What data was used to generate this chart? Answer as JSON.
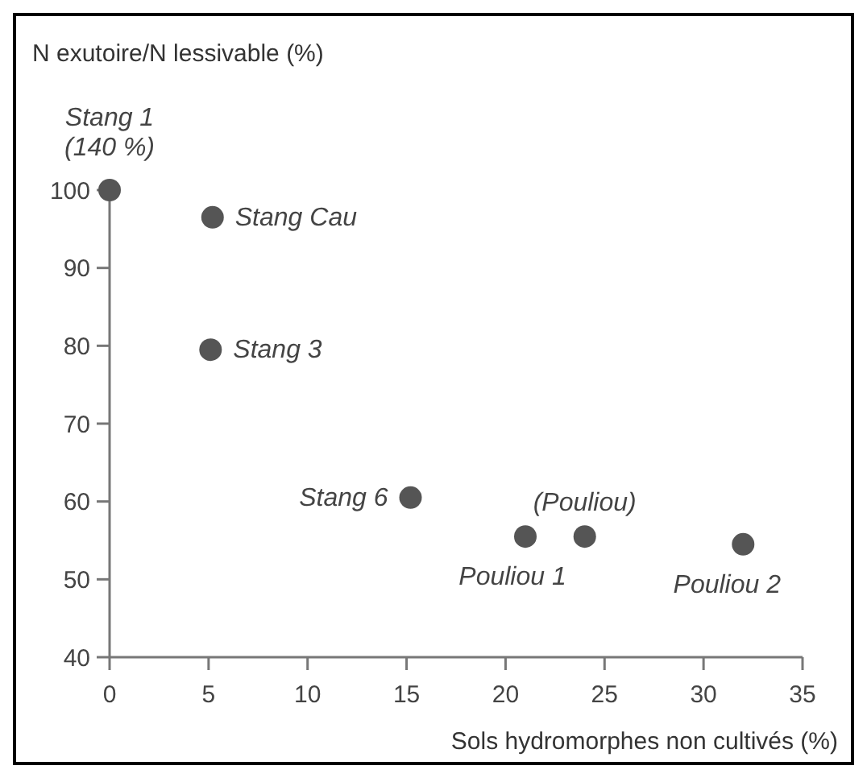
{
  "chart_data": {
    "type": "scatter",
    "ylabel": "N exutoire/N lessivable (%)",
    "xlabel": "Sols hydromorphes non cultivés (%)",
    "x": [
      0,
      5.2,
      5.1,
      15.2,
      21,
      24,
      32
    ],
    "values": [
      100,
      96.5,
      79.5,
      60.5,
      55.5,
      55.5,
      54.5
    ],
    "color": "#555555",
    "marker": "circle",
    "xlim": [
      0,
      35
    ],
    "xticks": [
      0,
      5,
      10,
      15,
      20,
      25,
      30,
      35
    ],
    "ylim": [
      40,
      100
    ],
    "yticks": [
      40,
      50,
      60,
      70,
      80,
      90,
      100
    ],
    "grid": false,
    "annotations": [
      {
        "text": "Stang 1\n(140 %)",
        "x": 0,
        "y": 100
      },
      {
        "text": "Stang Cau",
        "x": 5.2,
        "y": 96.5
      },
      {
        "text": "Stang 3",
        "x": 5.1,
        "y": 79.5
      },
      {
        "text": "Stang 6",
        "x": 15.2,
        "y": 60.5
      },
      {
        "text": "Pouliou 1",
        "x": 21,
        "y": 55.5
      },
      {
        "text": "(Pouliou)",
        "x": 24,
        "y": 55.5
      },
      {
        "text": "Pouliou 2",
        "x": 32,
        "y": 54.5
      }
    ]
  }
}
